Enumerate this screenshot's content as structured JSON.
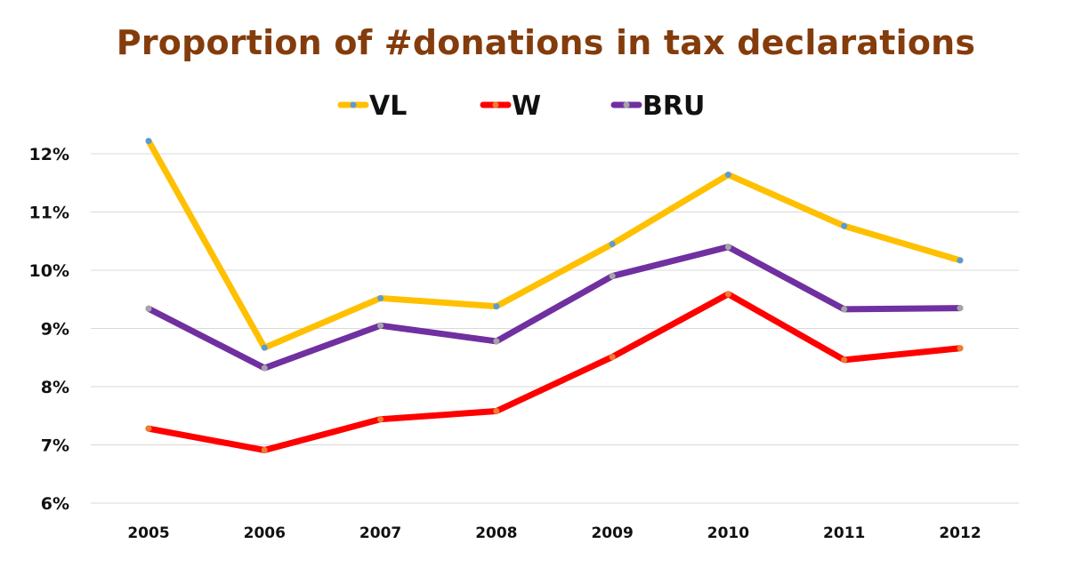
{
  "chart_data": {
    "type": "line",
    "title": "Proportion of #donations in tax declarations",
    "xlabel": "",
    "ylabel": "",
    "x": [
      "2005",
      "2006",
      "2007",
      "2008",
      "2009",
      "2010",
      "2011",
      "2012"
    ],
    "y_ticks": [
      "6%",
      "7%",
      "8%",
      "9%",
      "10%",
      "11%",
      "12%"
    ],
    "ylim": [
      6,
      12
    ],
    "grid": true,
    "legend_position": "top",
    "series": [
      {
        "name": "VL",
        "color": "#FFC000",
        "marker_color": "#5B9BD5",
        "values": [
          12.22,
          8.67,
          9.52,
          9.38,
          10.45,
          11.64,
          10.76,
          10.17
        ]
      },
      {
        "name": "W",
        "color": "#FF0000",
        "marker_color": "#ED7D31",
        "values": [
          7.28,
          6.91,
          7.44,
          7.58,
          8.51,
          9.59,
          8.46,
          8.66
        ]
      },
      {
        "name": "BRU",
        "color": "#7030A0",
        "marker_color": "#A5A5A5",
        "values": [
          9.34,
          8.32,
          9.05,
          8.78,
          9.9,
          10.4,
          9.33,
          9.35
        ]
      }
    ]
  }
}
